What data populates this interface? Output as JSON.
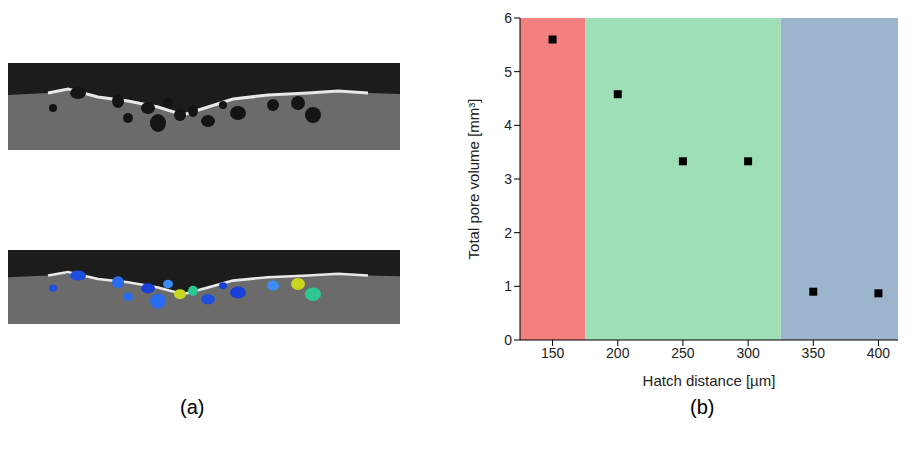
{
  "chart_data": {
    "type": "scatter",
    "x_label": "Hatch distance [µm]",
    "y_label": "Total pore volume [mm³]",
    "x": [
      150,
      200,
      250,
      300,
      350,
      400
    ],
    "values": [
      5.6,
      4.58,
      3.33,
      3.33,
      0.9,
      0.87
    ],
    "color": "#000000",
    "marker": "square",
    "xlim": [
      125,
      415
    ],
    "xticks": [
      150,
      200,
      250,
      300,
      350,
      400
    ],
    "ylim": [
      0,
      6
    ],
    "yticks": [
      0,
      1,
      2,
      3,
      4,
      5,
      6
    ],
    "grid": false,
    "regions": [
      {
        "x1": 125,
        "x2": 175,
        "color": "#f47f7f"
      },
      {
        "x1": 175,
        "x2": 325,
        "color": "#9fdfb6"
      },
      {
        "x1": 325,
        "x2": 415,
        "color": "#9cb5cd"
      }
    ]
  },
  "panel_labels": [
    "(a)",
    "(b)"
  ]
}
